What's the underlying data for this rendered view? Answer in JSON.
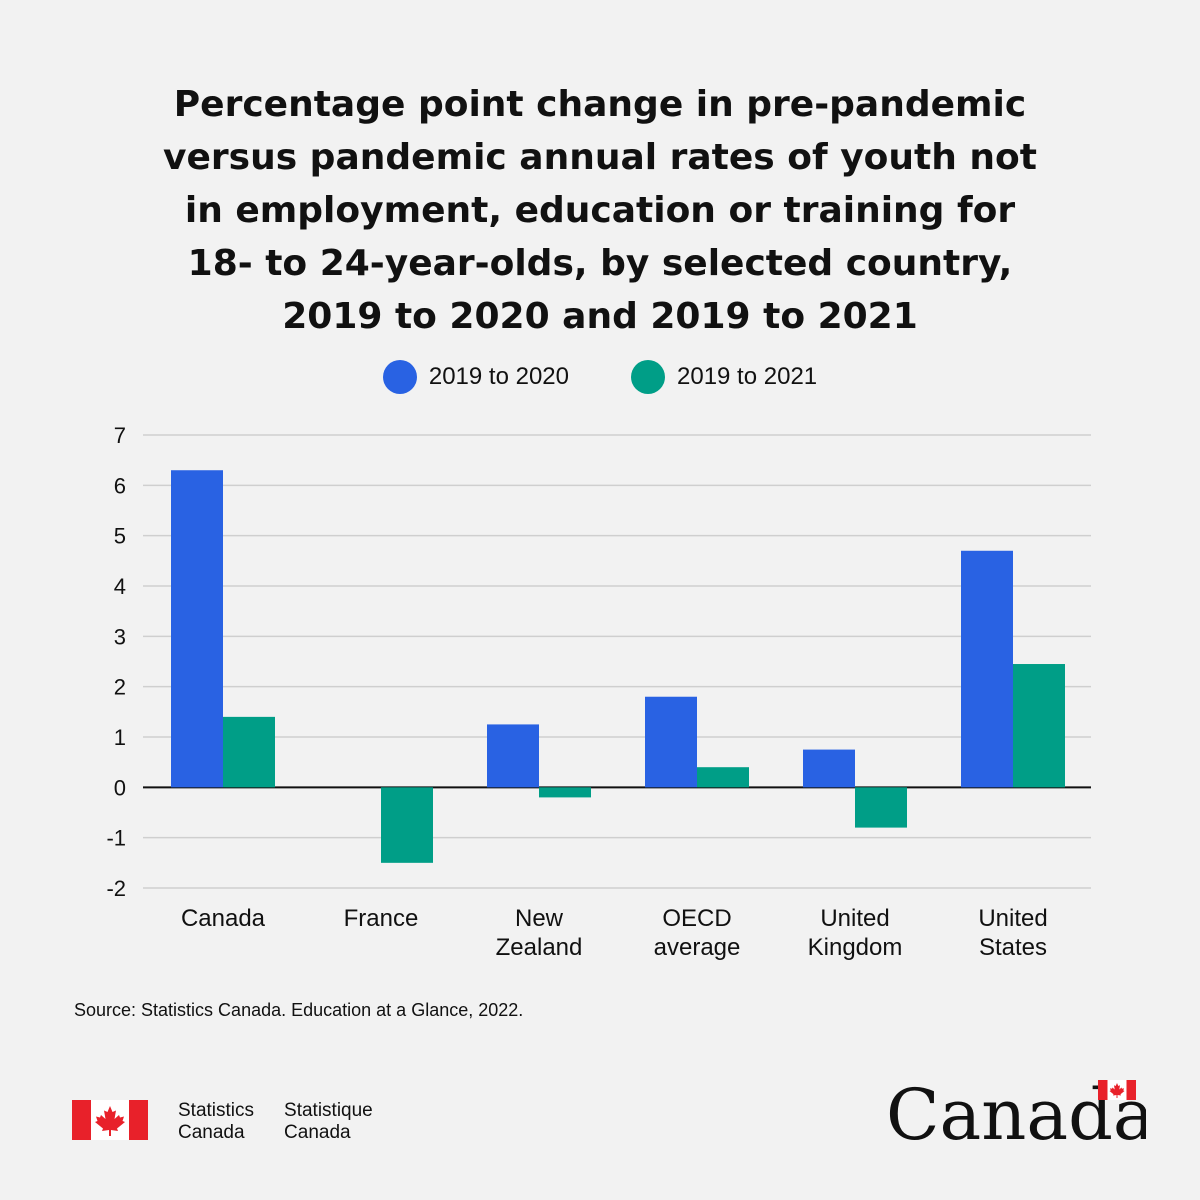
{
  "title": {
    "lines": [
      "Percentage point change in pre-pandemic",
      "versus pandemic annual rates of youth not",
      "in employment, education or training for",
      "18- to 24-year-olds, by selected country,",
      "2019 to 2020 and 2019 to 2021"
    ]
  },
  "legend": [
    {
      "label": "2019 to 2020",
      "color": "#2962e3"
    },
    {
      "label": "2019 to 2021",
      "color": "#009e87"
    }
  ],
  "chart_data": {
    "type": "bar",
    "title": "Percentage point change in pre-pandemic versus pandemic annual rates of youth not in employment, education or training for 18- to 24-year-olds, by selected country, 2019 to 2020 and 2019 to 2021",
    "categories": [
      [
        "Canada"
      ],
      [
        "France"
      ],
      [
        "New",
        "Zealand"
      ],
      [
        "OECD",
        "average"
      ],
      [
        "United",
        "Kingdom"
      ],
      [
        "United",
        "States"
      ]
    ],
    "series": [
      {
        "name": "2019 to 2020",
        "color": "#2962e3",
        "values": [
          6.3,
          0,
          1.25,
          1.8,
          0.75,
          4.7
        ]
      },
      {
        "name": "2019 to 2021",
        "color": "#009e87",
        "values": [
          1.4,
          -1.5,
          -0.2,
          0.4,
          -0.8,
          2.45
        ]
      }
    ],
    "yticks": [
      "7",
      "6",
      "5",
      "4",
      "3",
      "2",
      "1",
      "0",
      "-1",
      "-2"
    ],
    "ylim": [
      -2,
      7
    ],
    "xlabel": "",
    "ylabel": "",
    "grid": true
  },
  "source": "Source: Statistics Canada. Education at a Glance, 2022.",
  "footer": {
    "agency_en": [
      "Statistics",
      "Canada"
    ],
    "agency_fr": [
      "Statistique",
      "Canada"
    ],
    "wordmark": "Canada"
  }
}
